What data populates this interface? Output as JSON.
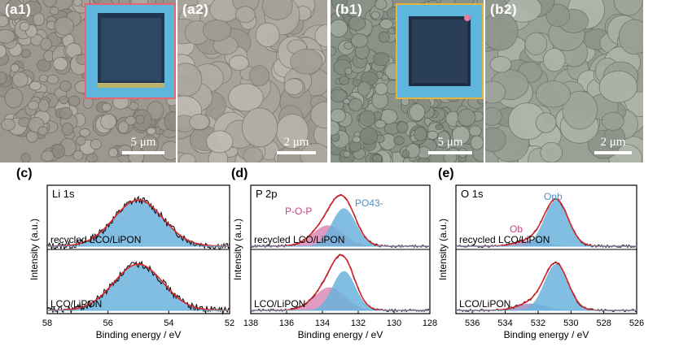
{
  "sem_panels": [
    {
      "label": "(a1)",
      "scale": "5 μm",
      "inset": true,
      "inset_border": "#e8646f",
      "tone": "#9c988f"
    },
    {
      "label": "(a2)",
      "scale": "2 μm",
      "inset": false,
      "tone": "#a7a39b"
    },
    {
      "label": "(b1)",
      "scale": "5 μm",
      "inset": true,
      "inset_border": "#e6b23c",
      "tone": "#8a9187"
    },
    {
      "label": "(b2)",
      "scale": "2 μm",
      "inset": false,
      "tone": "#9aa096"
    }
  ],
  "colors": {
    "fill_blue": "#6bb3dc",
    "fill_pink": "#d98bb5",
    "fill_purple": "#9b8ec4",
    "fit_red": "#d7262b",
    "raw_black": "#111111",
    "label_blue": "#4a90c8",
    "label_pink": "#c8407e"
  },
  "chart_data": [
    {
      "type": "line",
      "panel": "(c)",
      "title": "Li 1s",
      "xlabel": "Binding energy / eV",
      "ylabel": "Intensity (a.u.)",
      "xlim": [
        58,
        52
      ],
      "xticks": [
        58,
        56,
        54,
        52
      ],
      "series": [
        {
          "name": "recycled LCO/LiPON",
          "peaks": [
            {
              "center": 55.0,
              "fwhm": 1.9,
              "height": 1.0,
              "fill": "blue"
            }
          ]
        },
        {
          "name": "LCO/LiPON",
          "peaks": [
            {
              "center": 55.0,
              "fwhm": 1.9,
              "height": 1.0,
              "fill": "blue"
            }
          ]
        }
      ]
    },
    {
      "type": "line",
      "panel": "(d)",
      "title": "P 2p",
      "xlabel": "Binding energy / eV",
      "ylabel": "Intensity (a.u.)",
      "xlim": [
        138,
        128
      ],
      "xticks": [
        138,
        136,
        134,
        132,
        130,
        128
      ],
      "annotations": [
        "P-O-P",
        "PO43-"
      ],
      "series": [
        {
          "name": "recycled LCO/LiPON",
          "peaks": [
            {
              "center": 133.7,
              "fwhm": 2.0,
              "height": 0.45,
              "fill": "pink"
            },
            {
              "center": 132.8,
              "fwhm": 1.6,
              "height": 0.82,
              "fill": "blue"
            }
          ]
        },
        {
          "name": "LCO/LiPON",
          "peaks": [
            {
              "center": 133.6,
              "fwhm": 2.0,
              "height": 0.5,
              "fill": "pink"
            },
            {
              "center": 132.8,
              "fwhm": 1.5,
              "height": 0.85,
              "fill": "blue"
            }
          ]
        }
      ]
    },
    {
      "type": "line",
      "panel": "(e)",
      "title": "O 1s",
      "xlabel": "Binding energy / eV",
      "ylabel": "Intensity (a.u.)",
      "xlim": [
        537,
        526
      ],
      "xticks": [
        536,
        534,
        532,
        530,
        528,
        526
      ],
      "annotations": [
        "Onb",
        "Ob"
      ],
      "series": [
        {
          "name": "recycled LCO/LiPON",
          "peaks": [
            {
              "center": 532.5,
              "fwhm": 2.0,
              "height": 0.12,
              "fill": "purple"
            },
            {
              "center": 530.9,
              "fwhm": 1.7,
              "height": 1.0,
              "fill": "blue"
            }
          ]
        },
        {
          "name": "LCO/LiPON",
          "peaks": [
            {
              "center": 532.4,
              "fwhm": 2.0,
              "height": 0.15,
              "fill": "purple"
            },
            {
              "center": 530.9,
              "fwhm": 1.7,
              "height": 1.0,
              "fill": "blue"
            }
          ]
        }
      ]
    }
  ]
}
